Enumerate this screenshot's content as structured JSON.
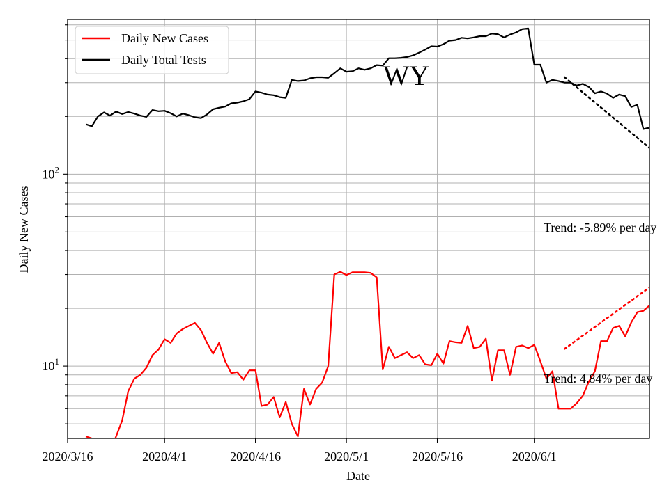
{
  "chart_data": {
    "type": "line",
    "title": "WY",
    "xlabel": "Date",
    "ylabel": "Daily New Cases",
    "y_scale": "log",
    "ylim": [
      4.2,
      640
    ],
    "xlim": [
      "2020-03-16",
      "2020-06-20"
    ],
    "grid": true,
    "legend_position": "top-left",
    "x_ticks": [
      "2020/3/16",
      "2020/4/1",
      "2020/4/16",
      "2020/5/1",
      "2020/5/16",
      "2020/6/1"
    ],
    "y_ticks": [
      {
        "value": 10,
        "base": "10",
        "exp": "1"
      },
      {
        "value": 100,
        "base": "10",
        "exp": "2"
      }
    ],
    "colors": {
      "cases": "#ff0000",
      "tests": "#000000"
    },
    "series": [
      {
        "name": "Daily New Cases",
        "color": "#ff0000",
        "start_date": "2020-03-19",
        "values": [
          4.3,
          4.2,
          4.0,
          3.9,
          3.6,
          4.3,
          5.2,
          7.4,
          8.6,
          9.0,
          9.8,
          11.4,
          12.2,
          13.8,
          13.2,
          14.8,
          15.6,
          16.2,
          16.8,
          15.4,
          13.2,
          11.6,
          13.2,
          10.6,
          9.2,
          9.3,
          8.5,
          9.5,
          9.5,
          6.2,
          6.3,
          6.9,
          5.4,
          6.5,
          5.0,
          4.3,
          7.6,
          6.3,
          7.6,
          8.2,
          10.0,
          30.0,
          31.0,
          29.8,
          30.8,
          30.8,
          30.8,
          30.6,
          29.0,
          9.6,
          12.6,
          11.0,
          11.4,
          11.8,
          11.0,
          11.4,
          10.2,
          10.1,
          11.6,
          10.3,
          13.5,
          13.3,
          13.2,
          16.2,
          12.4,
          12.6,
          13.9,
          8.4,
          12.1,
          12.1,
          9.0,
          12.6,
          12.8,
          12.4,
          12.9,
          10.6,
          8.6,
          9.4,
          6.0,
          6.0,
          6.0,
          6.4,
          7.0,
          8.3,
          9.4,
          13.5,
          13.5,
          15.8,
          16.2,
          14.3,
          16.9,
          19.1,
          19.4,
          20.7,
          18.5,
          19.6,
          24.0,
          23.6,
          23.1,
          22.0
        ]
      },
      {
        "name": "Daily Total Tests",
        "color": "#000000",
        "start_date": "2020-03-19",
        "values": [
          182,
          178,
          200,
          210,
          202,
          212,
          206,
          211,
          207,
          202,
          199,
          216,
          213,
          214,
          208,
          200,
          207,
          203,
          198,
          196,
          205,
          218,
          222,
          225,
          234,
          236,
          240,
          246,
          270,
          266,
          260,
          258,
          252,
          250,
          310,
          306,
          308,
          316,
          320,
          320,
          318,
          336,
          356,
          342,
          344,
          356,
          350,
          356,
          370,
          368,
          402,
          402,
          404,
          408,
          416,
          430,
          446,
          464,
          462,
          476,
          496,
          500,
          514,
          510,
          516,
          524,
          524,
          540,
          536,
          516,
          534,
          548,
          570,
          575,
          372,
          372,
          300,
          310,
          306,
          300,
          300,
          290,
          296,
          285,
          264,
          270,
          263,
          250,
          260,
          255,
          224,
          230,
          172,
          175,
          148,
          143,
          107
        ]
      }
    ],
    "trends": [
      {
        "label": "Trend: -5.89% per day",
        "rate_percent_per_day": -5.89,
        "series": "Daily Total Tests",
        "start_value": 320,
        "end_value": 137
      },
      {
        "label": "Trend: 4.84% per day",
        "rate_percent_per_day": 4.84,
        "series": "Daily New Cases",
        "start_value": 12.3,
        "end_value": 25.7
      }
    ]
  }
}
